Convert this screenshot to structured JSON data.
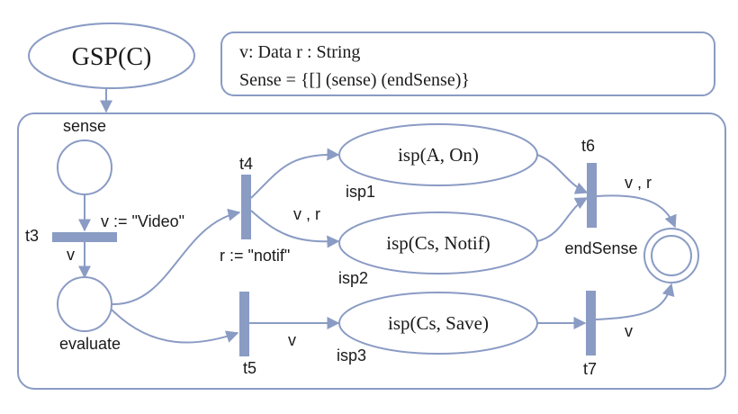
{
  "header": {
    "title": "GSP(C)",
    "decl_line1": "v: Data r : String",
    "decl_line2": "Sense  = {[] (sense) (endSense)}"
  },
  "places": {
    "sense": "sense",
    "evaluate": "evaluate",
    "isp1": "isp(A, On)",
    "isp1_label": "isp1",
    "isp2": "isp(Cs, Notif)",
    "isp2_label": "isp2",
    "isp3": "isp(Cs, Save)",
    "isp3_label": "isp3",
    "end": "endSense"
  },
  "transitions": {
    "t3": "t3",
    "t4": "t4",
    "t5": "t5",
    "t6": "t6",
    "t7": "t7"
  },
  "arc_labels": {
    "t3_assign": "v  := \"Video\"",
    "t3_out": "v",
    "t4_out": "v , r",
    "t4_assign": "r := \"notif\"",
    "t5_out": "v",
    "t6_out": "v , r",
    "t7_out": "v"
  }
}
